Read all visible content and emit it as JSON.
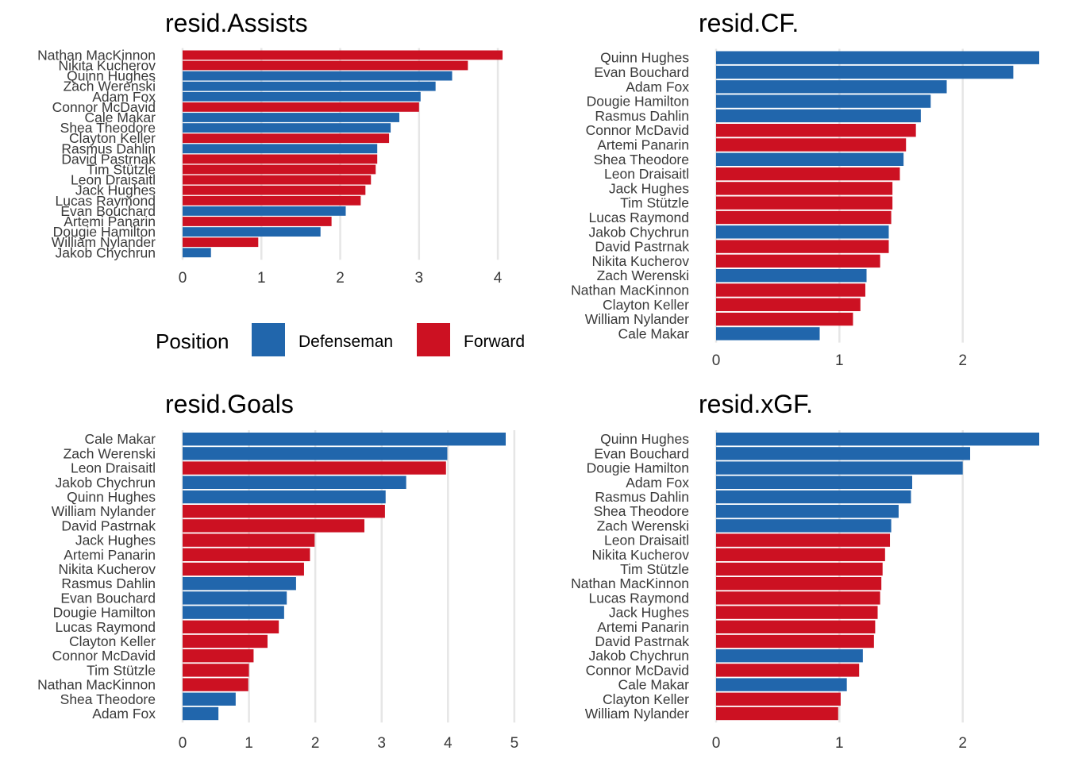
{
  "colors": {
    "Defenseman": "#2166ac",
    "Forward": "#cc1122"
  },
  "legend": {
    "title": "Position",
    "entries": [
      {
        "label": "Defenseman",
        "color": "#2166ac"
      },
      {
        "label": "Forward",
        "color": "#cc1122"
      }
    ]
  },
  "chart_data": [
    {
      "type": "bar",
      "orientation": "horizontal",
      "title": "resid.Assists",
      "xlim": [
        0,
        4.1
      ],
      "xticks": [
        0,
        1,
        2,
        3,
        4
      ],
      "grid": true,
      "categories": [
        "Nathan MacKinnon",
        "Nikita Kucherov",
        "Quinn Hughes",
        "Zach Werenski",
        "Adam Fox",
        "Connor McDavid",
        "Cale Makar",
        "Shea Theodore",
        "Clayton Keller",
        "Rasmus Dahlin",
        "David Pastrnak",
        "Tim Stützle",
        "Leon Draisaitl",
        "Jack Hughes",
        "Lucas Raymond",
        "Evan Bouchard",
        "Artemi Panarin",
        "Dougie Hamilton",
        "William Nylander",
        "Jakob Chychrun"
      ],
      "values": [
        4.06,
        3.62,
        3.42,
        3.21,
        3.02,
        3.0,
        2.75,
        2.64,
        2.62,
        2.47,
        2.47,
        2.45,
        2.39,
        2.32,
        2.26,
        2.07,
        1.89,
        1.75,
        0.96,
        0.36
      ],
      "positions": [
        "Forward",
        "Forward",
        "Defenseman",
        "Defenseman",
        "Defenseman",
        "Forward",
        "Defenseman",
        "Defenseman",
        "Forward",
        "Defenseman",
        "Forward",
        "Forward",
        "Forward",
        "Forward",
        "Forward",
        "Defenseman",
        "Forward",
        "Defenseman",
        "Forward",
        "Defenseman"
      ]
    },
    {
      "type": "bar",
      "orientation": "horizontal",
      "title": "resid.CF.",
      "xlim": [
        0,
        2.62
      ],
      "xticks": [
        0,
        1,
        2
      ],
      "grid": true,
      "categories": [
        "Quinn Hughes",
        "Evan Bouchard",
        "Adam Fox",
        "Dougie Hamilton",
        "Rasmus Dahlin",
        "Connor McDavid",
        "Artemi Panarin",
        "Shea Theodore",
        "Leon Draisaitl",
        "Jack Hughes",
        "Tim Stützle",
        "Lucas Raymond",
        "Jakob Chychrun",
        "David Pastrnak",
        "Nikita Kucherov",
        "Zach Werenski",
        "Nathan MacKinnon",
        "Clayton Keller",
        "William Nylander",
        "Cale Makar"
      ],
      "values": [
        2.62,
        2.41,
        1.87,
        1.74,
        1.66,
        1.62,
        1.54,
        1.52,
        1.49,
        1.43,
        1.43,
        1.42,
        1.4,
        1.4,
        1.33,
        1.22,
        1.21,
        1.17,
        1.11,
        0.84
      ],
      "positions": [
        "Defenseman",
        "Defenseman",
        "Defenseman",
        "Defenseman",
        "Defenseman",
        "Forward",
        "Forward",
        "Defenseman",
        "Forward",
        "Forward",
        "Forward",
        "Forward",
        "Defenseman",
        "Forward",
        "Forward",
        "Defenseman",
        "Forward",
        "Forward",
        "Forward",
        "Defenseman"
      ]
    },
    {
      "type": "bar",
      "orientation": "horizontal",
      "title": "resid.Goals",
      "xlim": [
        0,
        4.87
      ],
      "xticks": [
        0,
        1,
        2,
        3,
        4,
        5
      ],
      "grid": true,
      "categories": [
        "Cale Makar",
        "Zach Werenski",
        "Leon Draisaitl",
        "Jakob Chychrun",
        "Quinn Hughes",
        "William Nylander",
        "David Pastrnak",
        "Jack Hughes",
        "Artemi Panarin",
        "Nikita Kucherov",
        "Rasmus Dahlin",
        "Evan Bouchard",
        "Dougie Hamilton",
        "Lucas Raymond",
        "Clayton Keller",
        "Connor McDavid",
        "Tim Stützle",
        "Nathan MacKinnon",
        "Shea Theodore",
        "Adam Fox"
      ],
      "values": [
        4.87,
        3.99,
        3.97,
        3.37,
        3.06,
        3.05,
        2.74,
        1.99,
        1.92,
        1.83,
        1.71,
        1.57,
        1.53,
        1.45,
        1.28,
        1.07,
        1.0,
        0.99,
        0.8,
        0.54
      ],
      "positions": [
        "Defenseman",
        "Defenseman",
        "Forward",
        "Defenseman",
        "Defenseman",
        "Forward",
        "Forward",
        "Forward",
        "Forward",
        "Forward",
        "Defenseman",
        "Defenseman",
        "Defenseman",
        "Forward",
        "Forward",
        "Forward",
        "Forward",
        "Forward",
        "Defenseman",
        "Defenseman"
      ]
    },
    {
      "type": "bar",
      "orientation": "horizontal",
      "title": "resid.xGF.",
      "xlim": [
        0,
        2.62
      ],
      "xticks": [
        0,
        1,
        2
      ],
      "grid": true,
      "categories": [
        "Quinn Hughes",
        "Evan Bouchard",
        "Dougie Hamilton",
        "Adam Fox",
        "Rasmus Dahlin",
        "Shea Theodore",
        "Zach Werenski",
        "Leon Draisaitl",
        "Nikita Kucherov",
        "Tim Stützle",
        "Nathan MacKinnon",
        "Lucas Raymond",
        "Jack Hughes",
        "Artemi Panarin",
        "David Pastrnak",
        "Jakob Chychrun",
        "Connor McDavid",
        "Cale Makar",
        "Clayton Keller",
        "William Nylander"
      ],
      "values": [
        2.62,
        2.06,
        2.0,
        1.59,
        1.58,
        1.48,
        1.42,
        1.41,
        1.37,
        1.35,
        1.34,
        1.33,
        1.31,
        1.29,
        1.28,
        1.19,
        1.16,
        1.06,
        1.01,
        0.99
      ],
      "positions": [
        "Defenseman",
        "Defenseman",
        "Defenseman",
        "Defenseman",
        "Defenseman",
        "Defenseman",
        "Defenseman",
        "Forward",
        "Forward",
        "Forward",
        "Forward",
        "Forward",
        "Forward",
        "Forward",
        "Forward",
        "Defenseman",
        "Forward",
        "Defenseman",
        "Forward",
        "Forward"
      ]
    }
  ]
}
